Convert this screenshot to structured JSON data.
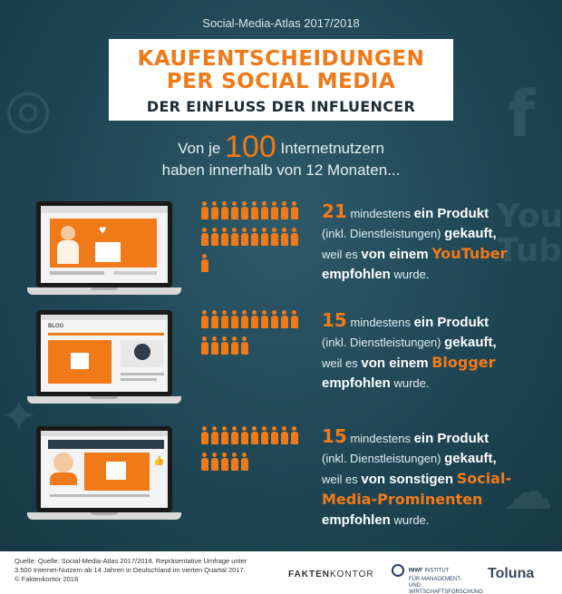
{
  "header": {
    "source_title": "Social-Media-Atlas 2017/2018",
    "title_line1": "KAUFENTSCHEIDUNGEN",
    "title_line2": "PER SOCIAL MEDIA",
    "title_line3": "DER EINFLUSS DER INFLUENCER"
  },
  "intro": {
    "pre": "Von je",
    "big": "100",
    "post": "Internetnutzern",
    "line2": "haben innerhalb von 12 Monaten..."
  },
  "rows": [
    {
      "count": 21,
      "number": "21",
      "t1": "mindestens",
      "t2": "ein Produkt",
      "t3": "(inkl. Dienstleistungen)",
      "t4": "gekauft,",
      "t5": "weil es",
      "t6": "von einem",
      "source": "YouTuber",
      "t7": "empfohlen",
      "t8": "wurde."
    },
    {
      "count": 15,
      "number": "15",
      "t1": "mindestens",
      "t2": "ein Produkt",
      "t3": "(inkl. Dienstleistungen)",
      "t4": "gekauft,",
      "t5": "weil es",
      "t6": "von einem",
      "source": "Blogger",
      "t7": "empfohlen",
      "t8": "wurde."
    },
    {
      "count": 15,
      "number": "15",
      "t1": "mindestens",
      "t2": "ein Produkt",
      "t3": "(inkl. Dienstleistungen)",
      "t4": "gekauft,",
      "t5": "weil es",
      "t6": "von sonstigen",
      "source": "Social-Media-Prominenten",
      "t7": "empfohlen",
      "t8": "wurde."
    }
  ],
  "blog_label": "BLOG",
  "footer": {
    "source_line1": "Quelle: Quelle: Social-Media-Atlas 2017/2018. Repräsentative Umfrage unter",
    "source_line2": "3.500 Internet-Nutzern ab 14 Jahren in Deutschland im vierten Quartal 2017.",
    "source_line3": "© Faktenkontor 2018",
    "logo1_a": "FAKTEN",
    "logo1_b": "KONTOR",
    "logo2_a": "IMWF",
    "logo2_b": "INSTITUT",
    "logo2_c": "FÜR MANAGEMENT- UND WIRTSCHAFTSFORSCHUNG",
    "logo3": "Toluna"
  },
  "colors": {
    "accent": "#f07a18",
    "background": "#1f4655",
    "text": "#e4eef1"
  }
}
